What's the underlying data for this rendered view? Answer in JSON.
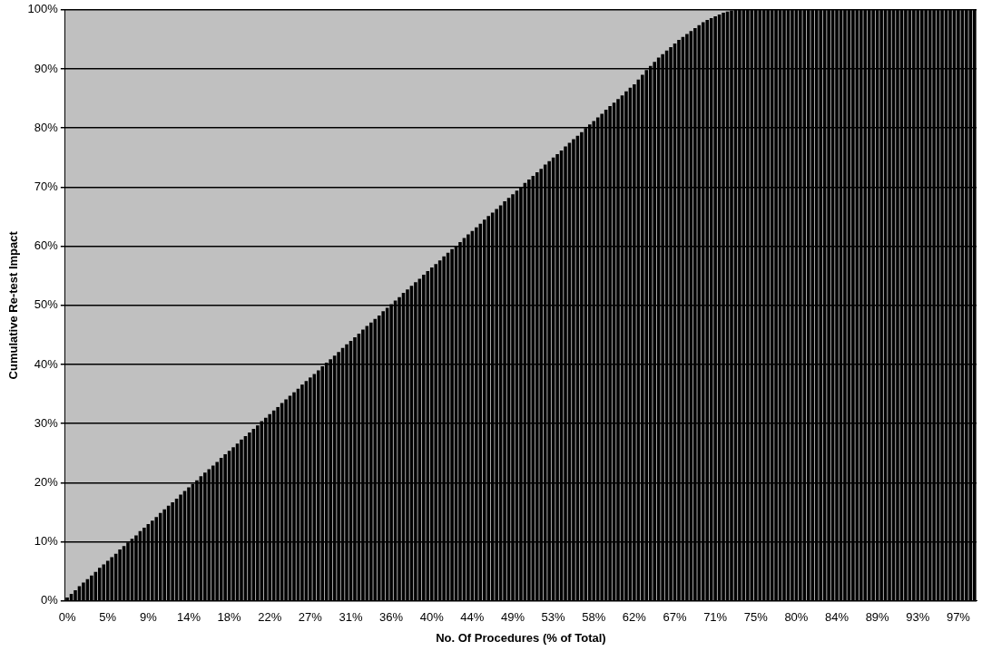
{
  "chart_data": {
    "type": "bar",
    "xlabel": "No. Of Procedures (% of Total)",
    "ylabel": "Cumulative Re-test Impact",
    "categories": [
      "0%",
      null,
      null,
      null,
      null,
      null,
      null,
      null,
      null,
      null,
      "5%",
      null,
      null,
      null,
      null,
      null,
      null,
      null,
      null,
      null,
      "9%",
      null,
      null,
      null,
      null,
      null,
      null,
      null,
      null,
      null,
      "14%",
      null,
      null,
      null,
      null,
      null,
      null,
      null,
      null,
      null,
      "18%",
      null,
      null,
      null,
      null,
      null,
      null,
      null,
      null,
      null,
      "22%",
      null,
      null,
      null,
      null,
      null,
      null,
      null,
      null,
      null,
      "27%",
      null,
      null,
      null,
      null,
      null,
      null,
      null,
      null,
      null,
      "31%",
      null,
      null,
      null,
      null,
      null,
      null,
      null,
      null,
      null,
      "36%",
      null,
      null,
      null,
      null,
      null,
      null,
      null,
      null,
      null,
      "40%",
      null,
      null,
      null,
      null,
      null,
      null,
      null,
      null,
      null,
      "44%",
      null,
      null,
      null,
      null,
      null,
      null,
      null,
      null,
      null,
      "49%",
      null,
      null,
      null,
      null,
      null,
      null,
      null,
      null,
      null,
      "53%",
      null,
      null,
      null,
      null,
      null,
      null,
      null,
      null,
      null,
      "58%",
      null,
      null,
      null,
      null,
      null,
      null,
      null,
      null,
      null,
      "62%",
      null,
      null,
      null,
      null,
      null,
      null,
      null,
      null,
      null,
      "67%",
      null,
      null,
      null,
      null,
      null,
      null,
      null,
      null,
      null,
      "71%",
      null,
      null,
      null,
      null,
      null,
      null,
      null,
      null,
      null,
      "75%",
      null,
      null,
      null,
      null,
      null,
      null,
      null,
      null,
      null,
      "80%",
      null,
      null,
      null,
      null,
      null,
      null,
      null,
      null,
      null,
      "84%",
      null,
      null,
      null,
      null,
      null,
      null,
      null,
      null,
      null,
      "89%",
      null,
      null,
      null,
      null,
      null,
      null,
      null,
      null,
      null,
      "93%",
      null,
      null,
      null,
      null,
      null,
      null,
      null,
      null,
      null,
      "97%",
      null,
      null,
      null,
      null
    ],
    "values": [
      0.6,
      1.2,
      1.8,
      2.5,
      3.1,
      3.7,
      4.3,
      4.9,
      5.6,
      6.2,
      6.8,
      7.4,
      8.0,
      8.7,
      9.3,
      9.9,
      10.5,
      11.1,
      11.8,
      12.4,
      13.0,
      13.6,
      14.2,
      14.9,
      15.5,
      16.1,
      16.7,
      17.3,
      18.0,
      18.6,
      19.2,
      19.8,
      20.4,
      21.1,
      21.7,
      22.3,
      22.9,
      23.5,
      24.2,
      24.8,
      25.4,
      26.0,
      26.6,
      27.3,
      27.9,
      28.5,
      29.1,
      29.7,
      30.4,
      31.0,
      31.6,
      32.2,
      32.8,
      33.5,
      34.1,
      34.7,
      35.3,
      35.9,
      36.6,
      37.2,
      37.8,
      38.4,
      39.0,
      39.7,
      40.3,
      40.9,
      41.5,
      42.1,
      42.8,
      43.4,
      44.0,
      44.6,
      45.2,
      45.9,
      46.5,
      47.1,
      47.7,
      48.3,
      49.0,
      49.6,
      50.2,
      50.8,
      51.4,
      52.1,
      52.7,
      53.3,
      53.9,
      54.5,
      55.2,
      55.8,
      56.4,
      57.0,
      57.6,
      58.3,
      58.9,
      59.5,
      60.1,
      60.7,
      61.4,
      62.0,
      62.6,
      63.2,
      63.8,
      64.5,
      65.1,
      65.7,
      66.3,
      66.9,
      67.6,
      68.2,
      68.8,
      69.4,
      70.0,
      70.7,
      71.3,
      71.9,
      72.5,
      73.1,
      73.8,
      74.4,
      75.0,
      75.6,
      76.2,
      76.9,
      77.5,
      78.1,
      78.7,
      79.3,
      80.0,
      80.6,
      81.2,
      81.8,
      82.4,
      83.1,
      83.7,
      84.3,
      84.9,
      85.5,
      86.2,
      86.8,
      87.4,
      88.2,
      89.0,
      89.8,
      90.5,
      91.2,
      91.9,
      92.5,
      93.1,
      93.7,
      94.3,
      94.9,
      95.4,
      95.9,
      96.4,
      96.9,
      97.4,
      97.9,
      98.3,
      98.6,
      98.9,
      99.2,
      99.5,
      99.7,
      99.9,
      100,
      100,
      100,
      100,
      100,
      100,
      100,
      100,
      100,
      100,
      100,
      100,
      100,
      100,
      100,
      100,
      100,
      100,
      100,
      100,
      100,
      100,
      100,
      100,
      100,
      100,
      100,
      100,
      100,
      100,
      100,
      100,
      100,
      100,
      100,
      100,
      100,
      100,
      100,
      100,
      100,
      100,
      100,
      100,
      100,
      100,
      100,
      100,
      100,
      100,
      100,
      100,
      100,
      100,
      100,
      100,
      100,
      100,
      100,
      100
    ],
    "color": "#000000",
    "ylim": [
      0,
      100
    ],
    "yticks": [
      {
        "value": 0,
        "label": "0%"
      },
      {
        "value": 10,
        "label": "10%"
      },
      {
        "value": 20,
        "label": "20%"
      },
      {
        "value": 30,
        "label": "30%"
      },
      {
        "value": 40,
        "label": "40%"
      },
      {
        "value": 50,
        "label": "50%"
      },
      {
        "value": 60,
        "label": "60%"
      },
      {
        "value": 70,
        "label": "70%"
      },
      {
        "value": 80,
        "label": "80%"
      },
      {
        "value": 90,
        "label": "90%"
      },
      {
        "value": 100,
        "label": "100%"
      }
    ],
    "grid": "y"
  }
}
